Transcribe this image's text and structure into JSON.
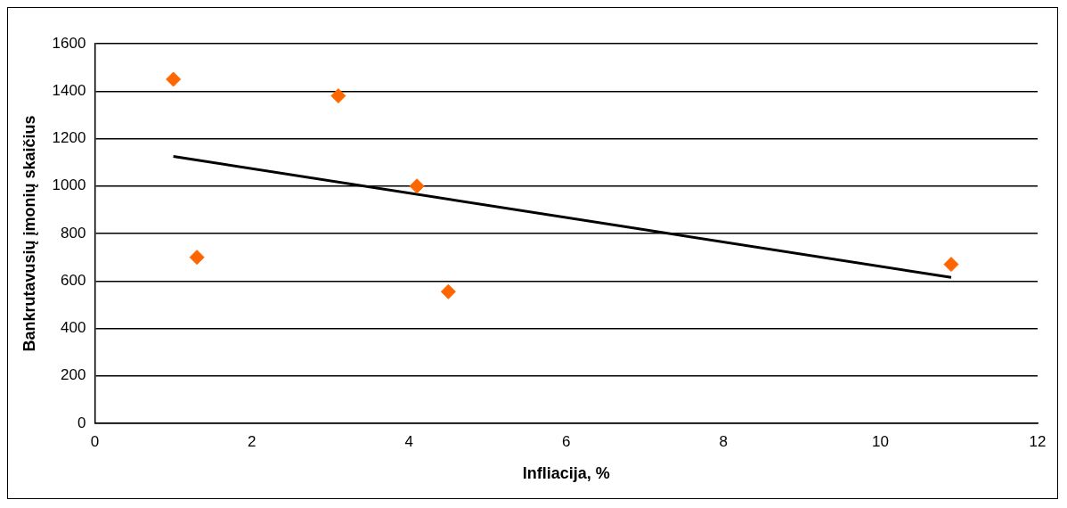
{
  "chart_data": {
    "type": "scatter",
    "xlabel": "Infliacija, %",
    "ylabel": "Bankrutavusių įmonių skaičius",
    "xlim": [
      0,
      12
    ],
    "xticks": [
      0,
      2,
      4,
      6,
      8,
      10,
      12
    ],
    "ylim": [
      0,
      1600
    ],
    "yticks": [
      0,
      200,
      400,
      600,
      800,
      1000,
      1200,
      1400,
      1600
    ],
    "grid": "y",
    "series": [
      {
        "type": "scatter",
        "marker": "diamond",
        "color": "#ff6600",
        "x": [
          1.0,
          1.3,
          3.1,
          4.1,
          4.5,
          10.9
        ],
        "values": [
          1450,
          700,
          1380,
          1000,
          555,
          670
        ]
      },
      {
        "type": "line",
        "marker": "none",
        "color": "#000000",
        "x": [
          1.0,
          10.9
        ],
        "values": [
          1125,
          615
        ]
      }
    ]
  }
}
